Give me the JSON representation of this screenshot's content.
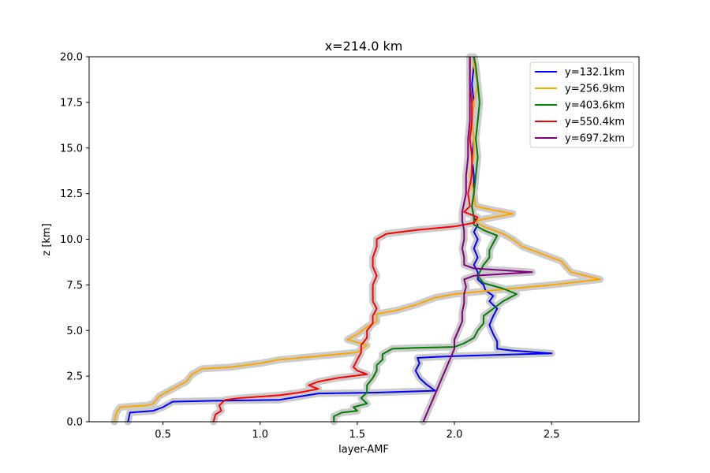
{
  "chart_data": {
    "type": "line",
    "title": "x=214.0 km",
    "xlabel": "layer-AMF",
    "ylabel": "z [km]",
    "xlim": [
      0.12,
      2.95
    ],
    "ylim": [
      0,
      20
    ],
    "xticks": [
      0.5,
      1.0,
      1.5,
      2.0,
      2.5
    ],
    "xtick_labels": [
      "0.5",
      "1.0",
      "1.5",
      "2.0",
      "2.5"
    ],
    "yticks": [
      0,
      2.5,
      5,
      7.5,
      10,
      12.5,
      15,
      17.5,
      20
    ],
    "ytick_labels": [
      "0.0",
      "2.5",
      "5.0",
      "7.5",
      "10.0",
      "12.5",
      "15.0",
      "17.5",
      "20.0"
    ],
    "grid": false,
    "legend_position": "top-right",
    "uncertainty_band_color": "#cccccc",
    "series": [
      {
        "name": "y=132.1km",
        "color": "#0000ff",
        "points": [
          [
            0.32,
            0
          ],
          [
            0.33,
            0.5
          ],
          [
            0.45,
            0.6
          ],
          [
            0.5,
            0.8
          ],
          [
            0.55,
            1.1
          ],
          [
            0.75,
            1.15
          ],
          [
            1.1,
            1.2
          ],
          [
            1.3,
            1.55
          ],
          [
            1.6,
            1.6
          ],
          [
            1.9,
            1.7
          ],
          [
            1.85,
            2.1
          ],
          [
            1.82,
            2.4
          ],
          [
            1.8,
            2.8
          ],
          [
            1.82,
            3.2
          ],
          [
            1.81,
            3.5
          ],
          [
            1.9,
            3.55
          ],
          [
            2.0,
            3.6
          ],
          [
            2.5,
            3.75
          ],
          [
            2.3,
            3.9
          ],
          [
            2.22,
            4.0
          ],
          [
            2.22,
            4.4
          ],
          [
            2.2,
            4.8
          ],
          [
            2.18,
            5.3
          ],
          [
            2.2,
            5.8
          ],
          [
            2.22,
            6.2
          ],
          [
            2.18,
            6.6
          ],
          [
            2.2,
            6.9
          ],
          [
            2.16,
            7.2
          ],
          [
            2.15,
            7.5
          ],
          [
            2.12,
            7.8
          ],
          [
            2.12,
            8.2
          ],
          [
            2.1,
            8.6
          ],
          [
            2.12,
            9.0
          ],
          [
            2.1,
            9.5
          ],
          [
            2.12,
            10.0
          ],
          [
            2.1,
            10.4
          ],
          [
            2.12,
            10.8
          ],
          [
            2.1,
            11.2
          ],
          [
            2.09,
            11.8
          ],
          [
            2.1,
            12.5
          ],
          [
            2.1,
            13.5
          ],
          [
            2.09,
            14.5
          ],
          [
            2.1,
            15.5
          ],
          [
            2.09,
            16.5
          ],
          [
            2.1,
            17.5
          ],
          [
            2.09,
            18.5
          ],
          [
            2.1,
            19.5
          ],
          [
            2.1,
            20
          ]
        ]
      },
      {
        "name": "y=256.9km",
        "color": "#ffa500",
        "points": [
          [
            0.25,
            0
          ],
          [
            0.26,
            0.5
          ],
          [
            0.28,
            0.8
          ],
          [
            0.35,
            0.85
          ],
          [
            0.42,
            0.9
          ],
          [
            0.45,
            1.0
          ],
          [
            0.48,
            1.4
          ],
          [
            0.55,
            1.8
          ],
          [
            0.62,
            2.2
          ],
          [
            0.65,
            2.6
          ],
          [
            0.7,
            2.9
          ],
          [
            0.85,
            3.0
          ],
          [
            1.0,
            3.2
          ],
          [
            1.1,
            3.4
          ],
          [
            1.3,
            3.6
          ],
          [
            1.5,
            3.8
          ],
          [
            1.55,
            4.2
          ],
          [
            1.45,
            4.5
          ],
          [
            1.5,
            4.8
          ],
          [
            1.55,
            5.2
          ],
          [
            1.6,
            5.5
          ],
          [
            1.6,
            5.9
          ],
          [
            1.7,
            6.1
          ],
          [
            1.8,
            6.4
          ],
          [
            1.9,
            6.8
          ],
          [
            2.0,
            7.0
          ],
          [
            2.2,
            7.2
          ],
          [
            2.5,
            7.5
          ],
          [
            2.75,
            7.8
          ],
          [
            2.6,
            8.2
          ],
          [
            2.55,
            8.8
          ],
          [
            2.45,
            9.2
          ],
          [
            2.35,
            9.6
          ],
          [
            2.3,
            10.0
          ],
          [
            2.25,
            10.3
          ],
          [
            2.15,
            10.7
          ],
          [
            2.1,
            11.0
          ],
          [
            2.2,
            11.2
          ],
          [
            2.3,
            11.4
          ],
          [
            2.2,
            11.6
          ],
          [
            2.11,
            11.8
          ],
          [
            2.1,
            12.5
          ],
          [
            2.08,
            13.5
          ],
          [
            2.1,
            14.5
          ],
          [
            2.1,
            15.5
          ],
          [
            2.09,
            16.5
          ],
          [
            2.1,
            17.5
          ],
          [
            2.12,
            18.5
          ],
          [
            2.1,
            19.5
          ],
          [
            2.1,
            20
          ]
        ]
      },
      {
        "name": "y=403.6km",
        "color": "#008000",
        "points": [
          [
            1.38,
            0
          ],
          [
            1.38,
            0.3
          ],
          [
            1.42,
            0.5
          ],
          [
            1.5,
            0.6
          ],
          [
            1.48,
            0.8
          ],
          [
            1.55,
            1.0
          ],
          [
            1.52,
            1.3
          ],
          [
            1.55,
            1.6
          ],
          [
            1.55,
            2.0
          ],
          [
            1.58,
            2.4
          ],
          [
            1.6,
            2.8
          ],
          [
            1.6,
            3.1
          ],
          [
            1.63,
            3.4
          ],
          [
            1.63,
            3.7
          ],
          [
            1.68,
            4.0
          ],
          [
            1.8,
            4.05
          ],
          [
            2.0,
            4.1
          ],
          [
            2.05,
            4.3
          ],
          [
            2.1,
            4.6
          ],
          [
            2.12,
            5.0
          ],
          [
            2.15,
            5.4
          ],
          [
            2.15,
            5.8
          ],
          [
            2.2,
            6.2
          ],
          [
            2.25,
            6.6
          ],
          [
            2.32,
            7.0
          ],
          [
            2.25,
            7.3
          ],
          [
            2.15,
            7.6
          ],
          [
            2.12,
            8.0
          ],
          [
            2.15,
            8.6
          ],
          [
            2.18,
            9.0
          ],
          [
            2.18,
            9.4
          ],
          [
            2.2,
            9.8
          ],
          [
            2.22,
            10.2
          ],
          [
            2.15,
            10.5
          ],
          [
            2.1,
            10.8
          ],
          [
            2.1,
            11.2
          ],
          [
            2.09,
            11.8
          ],
          [
            2.1,
            12.5
          ],
          [
            2.11,
            13.5
          ],
          [
            2.12,
            14.5
          ],
          [
            2.11,
            15.5
          ],
          [
            2.12,
            16.5
          ],
          [
            2.13,
            17.5
          ],
          [
            2.12,
            18.5
          ],
          [
            2.11,
            19.5
          ],
          [
            2.1,
            20
          ]
        ]
      },
      {
        "name": "y=550.4km",
        "color": "#ff0000",
        "points": [
          [
            0.76,
            0
          ],
          [
            0.77,
            0.4
          ],
          [
            0.8,
            0.6
          ],
          [
            0.79,
            0.9
          ],
          [
            0.82,
            1.2
          ],
          [
            0.9,
            1.3
          ],
          [
            1.1,
            1.45
          ],
          [
            1.2,
            1.6
          ],
          [
            1.3,
            1.8
          ],
          [
            1.25,
            2.0
          ],
          [
            1.3,
            2.2
          ],
          [
            1.4,
            2.4
          ],
          [
            1.55,
            2.6
          ],
          [
            1.5,
            2.8
          ],
          [
            1.48,
            3.0
          ],
          [
            1.5,
            3.4
          ],
          [
            1.52,
            3.8
          ],
          [
            1.52,
            4.2
          ],
          [
            1.55,
            4.6
          ],
          [
            1.55,
            5.0
          ],
          [
            1.58,
            5.4
          ],
          [
            1.58,
            5.8
          ],
          [
            1.6,
            6.2
          ],
          [
            1.58,
            6.6
          ],
          [
            1.58,
            7.0
          ],
          [
            1.58,
            7.5
          ],
          [
            1.6,
            8.0
          ],
          [
            1.58,
            8.5
          ],
          [
            1.58,
            9.0
          ],
          [
            1.6,
            9.6
          ],
          [
            1.6,
            10.0
          ],
          [
            1.65,
            10.3
          ],
          [
            1.8,
            10.5
          ],
          [
            2.0,
            10.7
          ],
          [
            2.1,
            10.9
          ],
          [
            2.12,
            11.2
          ],
          [
            2.05,
            11.5
          ],
          [
            2.08,
            11.8
          ],
          [
            2.07,
            12.5
          ],
          [
            2.09,
            13.5
          ],
          [
            2.09,
            14.5
          ],
          [
            2.08,
            15.5
          ],
          [
            2.09,
            16.5
          ],
          [
            2.09,
            17.5
          ],
          [
            2.08,
            18.5
          ],
          [
            2.08,
            19.5
          ],
          [
            2.08,
            20
          ]
        ]
      },
      {
        "name": "y=697.2km",
        "color": "#800080",
        "points": [
          [
            1.84,
            0
          ],
          [
            1.86,
            0.5
          ],
          [
            1.88,
            1.0
          ],
          [
            1.9,
            1.5
          ],
          [
            1.92,
            2.0
          ],
          [
            1.94,
            2.5
          ],
          [
            1.96,
            3.0
          ],
          [
            1.98,
            3.5
          ],
          [
            2.0,
            4.0
          ],
          [
            2.0,
            4.5
          ],
          [
            2.02,
            5.0
          ],
          [
            2.04,
            5.5
          ],
          [
            2.04,
            6.0
          ],
          [
            2.05,
            6.5
          ],
          [
            2.05,
            7.0
          ],
          [
            2.06,
            7.4
          ],
          [
            2.05,
            7.8
          ],
          [
            2.1,
            8.0
          ],
          [
            2.4,
            8.2
          ],
          [
            2.1,
            8.4
          ],
          [
            2.05,
            8.6
          ],
          [
            2.05,
            9.0
          ],
          [
            2.04,
            9.5
          ],
          [
            2.05,
            10.0
          ],
          [
            2.05,
            10.5
          ],
          [
            2.04,
            11.0
          ],
          [
            2.04,
            11.5
          ],
          [
            2.05,
            12.0
          ],
          [
            2.06,
            12.5
          ],
          [
            2.06,
            13.5
          ],
          [
            2.07,
            14.5
          ],
          [
            2.07,
            15.5
          ],
          [
            2.08,
            16.5
          ],
          [
            2.08,
            17.5
          ],
          [
            2.08,
            18.5
          ],
          [
            2.08,
            19.5
          ],
          [
            2.08,
            20
          ]
        ]
      }
    ]
  }
}
